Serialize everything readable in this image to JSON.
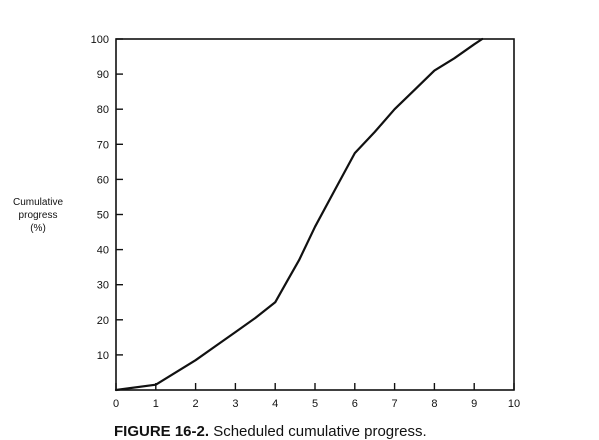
{
  "chart_data": {
    "type": "line",
    "xlabel": "",
    "ylabel_lines": [
      "Cumulative",
      "progress",
      "(%)"
    ],
    "xlim": [
      0,
      10
    ],
    "ylim": [
      0,
      100
    ],
    "x_ticks": [
      "0",
      "1",
      "2",
      "3",
      "4",
      "5",
      "6",
      "7",
      "8",
      "9",
      "10"
    ],
    "y_ticks": [
      "10",
      "20",
      "30",
      "40",
      "50",
      "60",
      "70",
      "80",
      "90",
      "100"
    ],
    "grid": false,
    "series": [
      {
        "x": [
          0,
          1,
          1.5,
          2,
          2.5,
          3,
          3.5,
          4,
          4.3,
          4.6,
          5,
          5.5,
          6,
          6.5,
          7,
          7.5,
          8,
          8.5,
          9,
          9.2
        ],
        "y": [
          0,
          1.5,
          5,
          8.5,
          12.5,
          16.5,
          20.5,
          25,
          31,
          37,
          46.5,
          57,
          67.5,
          73.5,
          80,
          85.5,
          91,
          94.5,
          98.5,
          100
        ]
      }
    ]
  },
  "caption": {
    "figure_label": "FIGURE 16-2.",
    "text": " Scheduled cumulative progress."
  }
}
